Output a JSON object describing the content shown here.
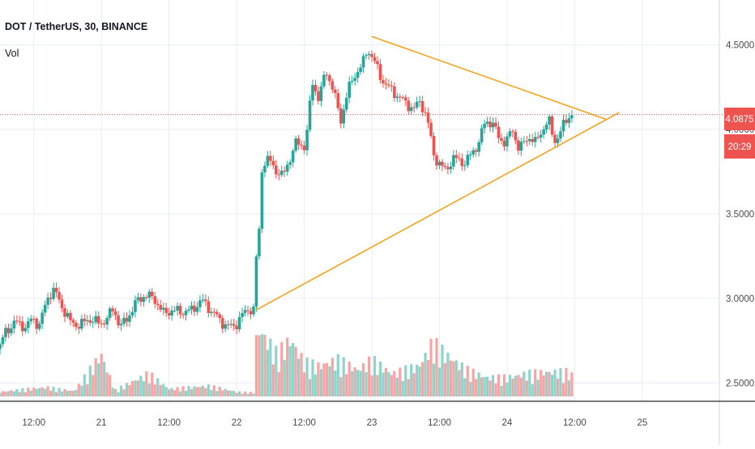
{
  "header": {
    "symbol_title": "DOT / TetherUS, 30, BINANCE",
    "indicator_label": "Vol"
  },
  "price_scale": {
    "current_price_label": "4.0875",
    "countdown_label": "20:29"
  },
  "colors": {
    "up": "#26a69a",
    "down": "#ef5350",
    "vol_up": "#8fd3cb",
    "vol_down": "#f5a5a3",
    "trendline": "#f7a21b",
    "price_line": "#ef5350",
    "grid": "#e9eef5",
    "axis_text": "#4a4a4a"
  },
  "chart_data": {
    "type": "candlestick",
    "title": "DOT / TetherUS, 30, BINANCE",
    "y_ticks": [
      "4.5000",
      "4.0000",
      "3.5000",
      "3.0000",
      "2.5000"
    ],
    "ylim": [
      2.42,
      4.67
    ],
    "x_ticks": [
      "12:00",
      "21",
      "12:00",
      "22",
      "12:00",
      "23",
      "12:00",
      "24",
      "12:00",
      "25"
    ],
    "x_tick_days": [
      20.5,
      21,
      21.5,
      22,
      22.5,
      23,
      23.5,
      24,
      24.5,
      25
    ],
    "x_range_days": [
      20.25,
      25.57
    ],
    "last_price": 4.0875,
    "grid": true,
    "price_path": [
      [
        20.25,
        2.7
      ],
      [
        20.3,
        2.8
      ],
      [
        20.37,
        2.86
      ],
      [
        20.45,
        2.83
      ],
      [
        20.5,
        2.88
      ],
      [
        20.55,
        2.84
      ],
      [
        20.62,
        3.02
      ],
      [
        20.66,
        3.05
      ],
      [
        20.72,
        2.95
      ],
      [
        20.78,
        2.86
      ],
      [
        20.85,
        2.84
      ],
      [
        20.92,
        2.88
      ],
      [
        21.0,
        2.85
      ],
      [
        21.05,
        2.88
      ],
      [
        21.1,
        2.94
      ],
      [
        21.15,
        2.83
      ],
      [
        21.2,
        2.88
      ],
      [
        21.27,
        2.98
      ],
      [
        21.33,
        3.02
      ],
      [
        21.4,
        3.0
      ],
      [
        21.47,
        2.91
      ],
      [
        21.53,
        2.93
      ],
      [
        21.6,
        2.92
      ],
      [
        21.68,
        2.93
      ],
      [
        21.75,
        2.99
      ],
      [
        21.82,
        2.93
      ],
      [
        21.9,
        2.86
      ],
      [
        21.95,
        2.83
      ],
      [
        22.0,
        2.84
      ],
      [
        22.05,
        2.9
      ],
      [
        22.1,
        2.94
      ],
      [
        22.14,
        2.93
      ],
      [
        22.15,
        3.22
      ],
      [
        22.17,
        3.28
      ],
      [
        22.2,
        3.8
      ],
      [
        22.25,
        3.82
      ],
      [
        22.3,
        3.76
      ],
      [
        22.35,
        3.72
      ],
      [
        22.4,
        3.82
      ],
      [
        22.45,
        3.92
      ],
      [
        22.52,
        3.9
      ],
      [
        22.57,
        4.28
      ],
      [
        22.62,
        4.18
      ],
      [
        22.67,
        4.35
      ],
      [
        22.72,
        4.25
      ],
      [
        22.78,
        4.05
      ],
      [
        22.83,
        4.22
      ],
      [
        22.88,
        4.32
      ],
      [
        22.94,
        4.38
      ],
      [
        22.98,
        4.48
      ],
      [
        23.03,
        4.4
      ],
      [
        23.08,
        4.3
      ],
      [
        23.13,
        4.25
      ],
      [
        23.2,
        4.2
      ],
      [
        23.27,
        4.15
      ],
      [
        23.32,
        4.12
      ],
      [
        23.37,
        4.17
      ],
      [
        23.42,
        4.06
      ],
      [
        23.47,
        3.85
      ],
      [
        23.5,
        3.8
      ],
      [
        23.55,
        3.76
      ],
      [
        23.62,
        3.83
      ],
      [
        23.7,
        3.8
      ],
      [
        23.75,
        3.86
      ],
      [
        23.8,
        3.92
      ],
      [
        23.85,
        4.05
      ],
      [
        23.9,
        4.04
      ],
      [
        23.95,
        3.95
      ],
      [
        24.0,
        3.92
      ],
      [
        24.05,
        4.0
      ],
      [
        24.1,
        3.88
      ],
      [
        24.17,
        3.96
      ],
      [
        24.22,
        3.92
      ],
      [
        24.27,
        4.0
      ],
      [
        24.32,
        4.05
      ],
      [
        24.36,
        3.93
      ],
      [
        24.4,
        3.97
      ],
      [
        24.44,
        4.05
      ],
      [
        24.48,
        4.09
      ]
    ],
    "volume": {
      "ylim": [
        0,
        1
      ],
      "points": [
        [
          20.25,
          0.06
        ],
        [
          20.4,
          0.09
        ],
        [
          20.6,
          0.12
        ],
        [
          20.8,
          0.07
        ],
        [
          21.0,
          0.55
        ],
        [
          21.1,
          0.08
        ],
        [
          21.35,
          0.3
        ],
        [
          21.5,
          0.1
        ],
        [
          21.8,
          0.14
        ],
        [
          22.0,
          0.06
        ],
        [
          22.13,
          0.05
        ],
        [
          22.15,
          0.92
        ],
        [
          22.2,
          0.8
        ],
        [
          22.3,
          0.55
        ],
        [
          22.4,
          0.75
        ],
        [
          22.5,
          0.45
        ],
        [
          22.6,
          0.4
        ],
        [
          22.75,
          0.48
        ],
        [
          22.9,
          0.35
        ],
        [
          23.0,
          0.48
        ],
        [
          23.15,
          0.3
        ],
        [
          23.35,
          0.4
        ],
        [
          23.45,
          0.7
        ],
        [
          23.55,
          0.55
        ],
        [
          23.7,
          0.35
        ],
        [
          23.85,
          0.25
        ],
        [
          24.0,
          0.25
        ],
        [
          24.15,
          0.3
        ],
        [
          24.3,
          0.32
        ],
        [
          24.45,
          0.32
        ],
        [
          24.48,
          0.28
        ]
      ]
    },
    "annotations": {
      "symmetrical_triangle": {
        "upper_line": [
          [
            23.0,
            4.55
          ],
          [
            24.73,
            4.06
          ]
        ],
        "lower_line": [
          [
            22.14,
            2.93
          ],
          [
            24.83,
            4.1
          ]
        ]
      }
    }
  }
}
